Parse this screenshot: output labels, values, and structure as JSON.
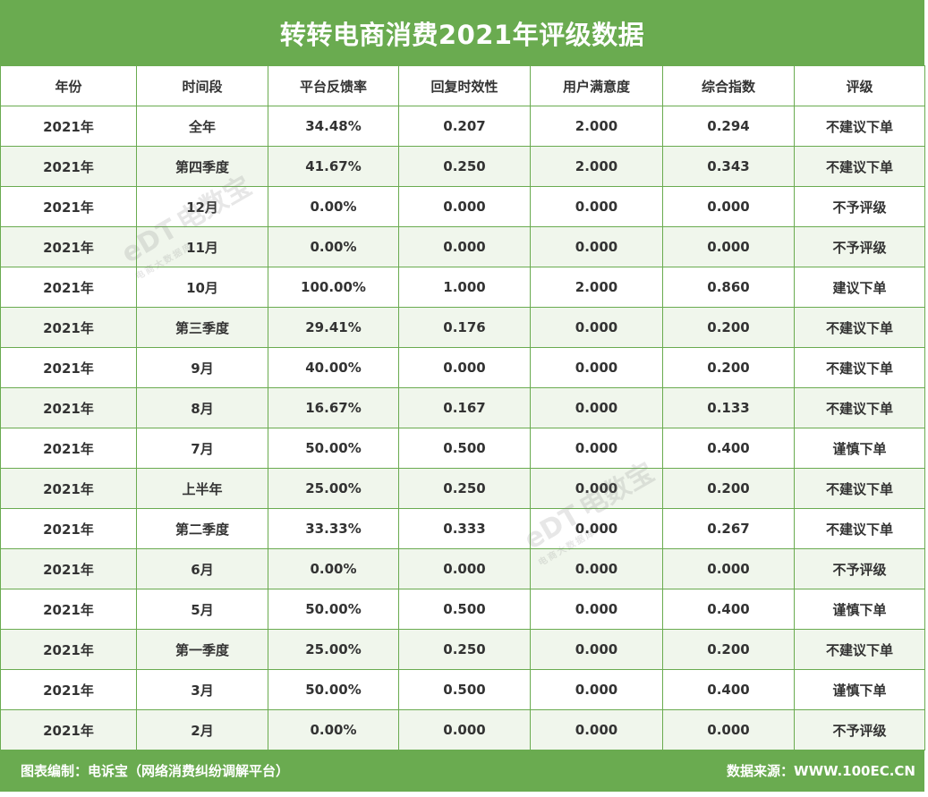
{
  "title": "转转电商消费2021年评级数据",
  "headers": [
    "年份",
    "时间段",
    "平台反馈率",
    "回复时效性",
    "用户满意度",
    "综合指数",
    "评级"
  ],
  "rows": [
    [
      "2021年",
      "全年",
      "34.48%",
      "0.207",
      "2.000",
      "0.294",
      "不建议下单"
    ],
    [
      "2021年",
      "第四季度",
      "41.67%",
      "0.250",
      "2.000",
      "0.343",
      "不建议下单"
    ],
    [
      "2021年",
      "12月",
      "0.00%",
      "0.000",
      "0.000",
      "0.000",
      "不予评级"
    ],
    [
      "2021年",
      "11月",
      "0.00%",
      "0.000",
      "0.000",
      "0.000",
      "不予评级"
    ],
    [
      "2021年",
      "10月",
      "100.00%",
      "1.000",
      "2.000",
      "0.860",
      "建议下单"
    ],
    [
      "2021年",
      "第三季度",
      "29.41%",
      "0.176",
      "0.000",
      "0.200",
      "不建议下单"
    ],
    [
      "2021年",
      "9月",
      "40.00%",
      "0.000",
      "0.000",
      "0.200",
      "不建议下单"
    ],
    [
      "2021年",
      "8月",
      "16.67%",
      "0.167",
      "0.000",
      "0.133",
      "不建议下单"
    ],
    [
      "2021年",
      "7月",
      "50.00%",
      "0.500",
      "0.000",
      "0.400",
      "谨慎下单"
    ],
    [
      "2021年",
      "上半年",
      "25.00%",
      "0.250",
      "0.000",
      "0.200",
      "不建议下单"
    ],
    [
      "2021年",
      "第二季度",
      "33.33%",
      "0.333",
      "0.000",
      "0.267",
      "不建议下单"
    ],
    [
      "2021年",
      "6月",
      "0.00%",
      "0.000",
      "0.000",
      "0.000",
      "不予评级"
    ],
    [
      "2021年",
      "5月",
      "50.00%",
      "0.500",
      "0.000",
      "0.400",
      "谨慎下单"
    ],
    [
      "2021年",
      "第一季度",
      "25.00%",
      "0.250",
      "0.000",
      "0.200",
      "不建议下单"
    ],
    [
      "2021年",
      "3月",
      "50.00%",
      "0.500",
      "0.000",
      "0.400",
      "谨慎下单"
    ],
    [
      "2021年",
      "2月",
      "0.00%",
      "0.000",
      "0.000",
      "0.000",
      "不予评级"
    ]
  ],
  "footer": {
    "left": "图表编制：电诉宝（网络消费纠纷调解平台）",
    "right": "数据来源：WWW.100EC.CN"
  },
  "watermark": {
    "logo": "eDT",
    "brand": "电数宝",
    "tagline": "电商大数据库"
  },
  "colors": {
    "brand_green": "#6aab50",
    "alt_row": "#f0f6ec",
    "text": "#333333"
  }
}
